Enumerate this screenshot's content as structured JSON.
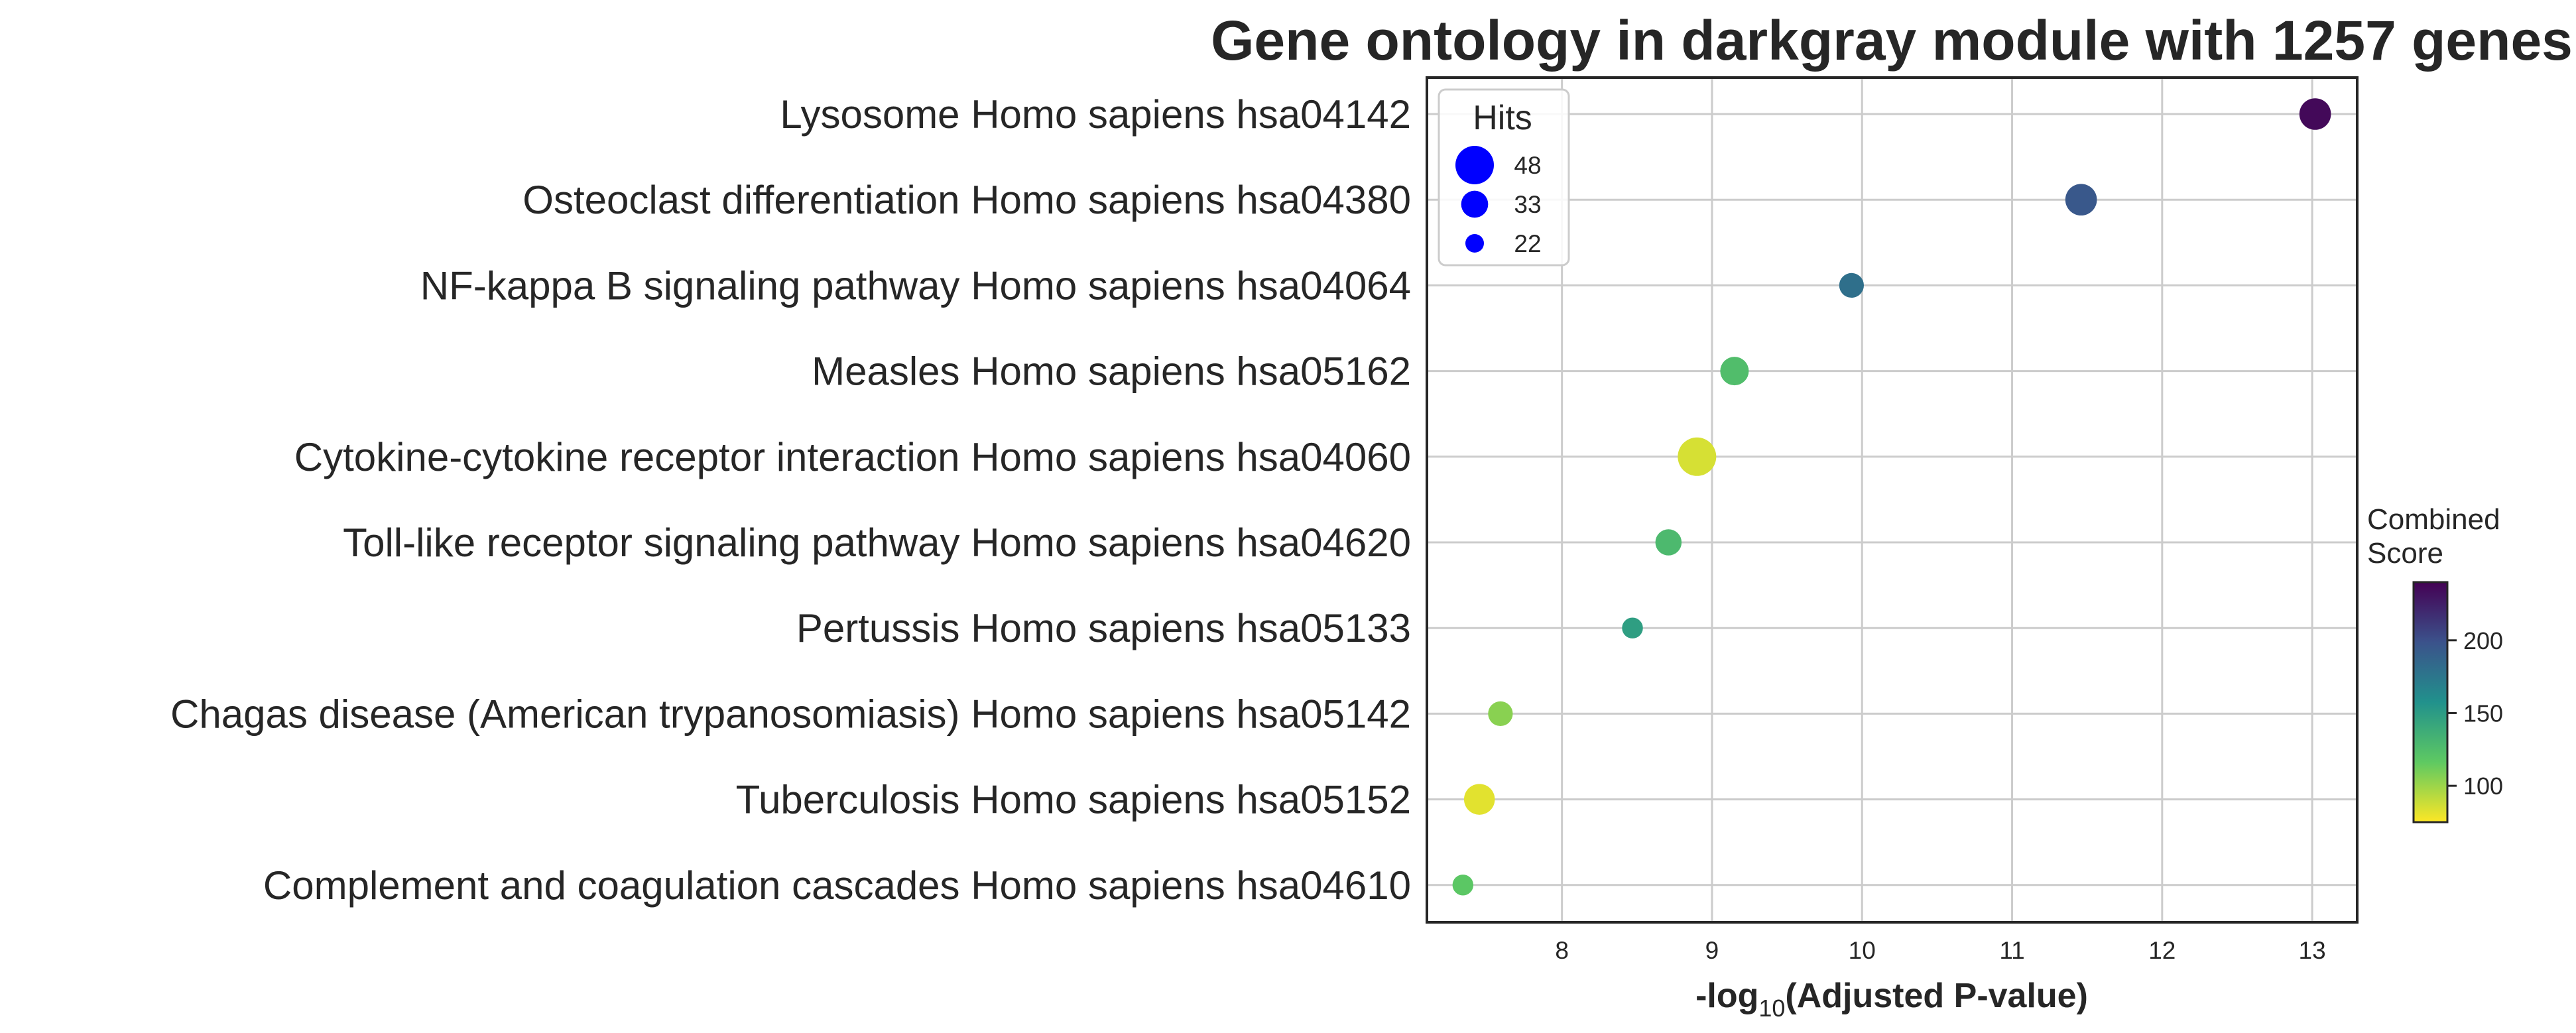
{
  "chart_data": {
    "type": "scatter",
    "title": "Gene ontology in darkgray module with 1257 genes",
    "xlabel_main": "-log",
    "xlabel_sub": "10",
    "xlabel_rest": "(Adjusted P-value)",
    "xlim": [
      7.1,
      13.3
    ],
    "xticks": [
      8,
      9,
      10,
      11,
      12,
      13
    ],
    "grid": true,
    "categories": [
      "Lysosome Homo sapiens hsa04142",
      "Osteoclast differentiation Homo sapiens hsa04380",
      "NF-kappa B signaling pathway Homo sapiens hsa04064",
      "Measles Homo sapiens hsa05162",
      "Cytokine-cytokine receptor interaction Homo sapiens hsa04060",
      "Toll-like receptor signaling pathway Homo sapiens hsa04620",
      "Pertussis Homo sapiens hsa05133",
      "Chagas disease (American trypanosomiasis) Homo sapiens hsa05142",
      "Tuberculosis Homo sapiens hsa05152",
      "Complement and coagulation cascades Homo sapiens hsa04610"
    ],
    "x": [
      13.02,
      11.46,
      9.93,
      9.15,
      8.9,
      8.71,
      8.47,
      7.59,
      7.45,
      7.34
    ],
    "hits": [
      39,
      39,
      30,
      35,
      48,
      32,
      25,
      30,
      38,
      25
    ],
    "combined_score": [
      236,
      195,
      180,
      125,
      85,
      128,
      148,
      105,
      82,
      118
    ],
    "legend": {
      "title": "Hits",
      "placement": "top-left",
      "entries": [
        {
          "label": "48",
          "value": 48
        },
        {
          "label": "33",
          "value": 33
        },
        {
          "label": "22",
          "value": 22
        }
      ]
    },
    "colorbar": {
      "title_line1": "Combined",
      "title_line2": "Score",
      "range": [
        75,
        240
      ],
      "ticks": [
        100,
        150,
        200
      ],
      "colormap": "viridis_r"
    }
  },
  "colors": {
    "legend_marker": "#0000ff",
    "axes": "#262626",
    "grid": "#cccccc"
  }
}
